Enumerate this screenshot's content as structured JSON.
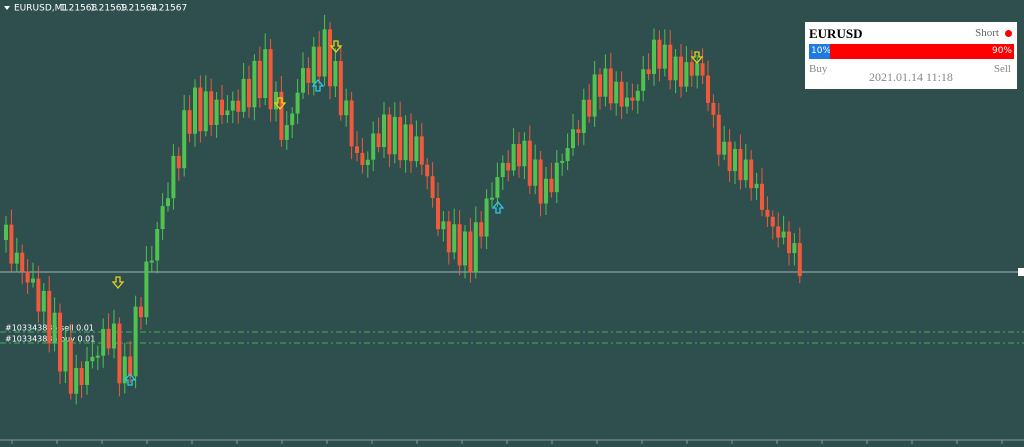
{
  "header": {
    "symbol": "EURUSD,M1",
    "prices": [
      1.21568,
      1.21569,
      1.21564,
      1.21567
    ]
  },
  "panel": {
    "symbol": "EURUSD",
    "signal": "Short",
    "buy": {
      "value": 10,
      "label": "10%"
    },
    "sell": {
      "value": 90,
      "label": "90%"
    },
    "buy_label": "Buy",
    "sell_label": "Sell",
    "time": "2021.01.14 11:18"
  },
  "orders": [
    {
      "label": "#103343836 sell 0.01"
    },
    {
      "label": "#103343836 buy 0.01"
    }
  ]
}
